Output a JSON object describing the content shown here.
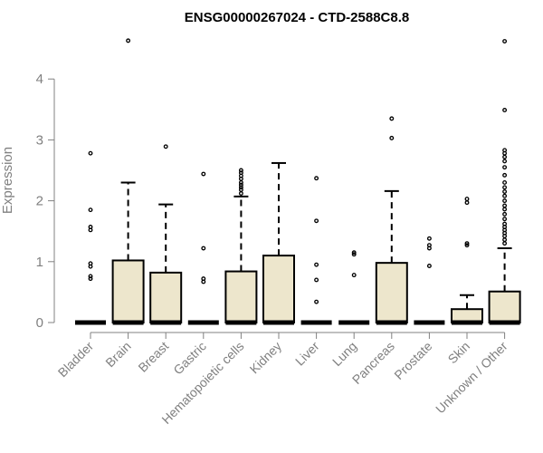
{
  "chart_data": {
    "type": "box",
    "title": "ENSG00000267024 - CTD-2588C8.8",
    "ylabel": "Expression",
    "xlabel": "",
    "ylim": [
      0,
      4.8
    ],
    "yticks": [
      0,
      1,
      2,
      3,
      4
    ],
    "grid": false,
    "box_color": "#ede6cc",
    "categories": [
      "Bladder",
      "Brain",
      "Breast",
      "Gastric",
      "Hematopoietic cells",
      "Kidney",
      "Liver",
      "Lung",
      "Pancreas",
      "Prostate",
      "Skin",
      "Unknown / Other"
    ],
    "boxes": [
      {
        "q1": 0,
        "median": 0,
        "q3": 0,
        "whisker_low": 0,
        "whisker_high": 0,
        "outliers": [
          0.72,
          0.76,
          0.92,
          0.97,
          1.52,
          1.57,
          1.85,
          2.78
        ]
      },
      {
        "q1": 0,
        "median": 0,
        "q3": 1.02,
        "whisker_low": 0,
        "whisker_high": 2.3,
        "outliers": [
          4.63
        ]
      },
      {
        "q1": 0,
        "median": 0,
        "q3": 0.82,
        "whisker_low": 0,
        "whisker_high": 1.94,
        "outliers": [
          2.89
        ]
      },
      {
        "q1": 0,
        "median": 0,
        "q3": 0,
        "whisker_low": 0,
        "whisker_high": 0,
        "outliers": [
          0.67,
          0.72,
          1.22,
          2.44
        ]
      },
      {
        "q1": 0,
        "median": 0,
        "q3": 0.84,
        "whisker_low": 0,
        "whisker_high": 2.07,
        "outliers": [
          2.12,
          2.18,
          2.22,
          2.26,
          2.3,
          2.36,
          2.41,
          2.46,
          2.5
        ]
      },
      {
        "q1": 0,
        "median": 0,
        "q3": 1.1,
        "whisker_low": 0,
        "whisker_high": 2.62,
        "outliers": []
      },
      {
        "q1": 0,
        "median": 0,
        "q3": 0,
        "whisker_low": 0,
        "whisker_high": 0,
        "outliers": [
          0.34,
          0.7,
          0.95,
          1.67,
          2.37
        ]
      },
      {
        "q1": 0,
        "median": 0,
        "q3": 0,
        "whisker_low": 0,
        "whisker_high": 0,
        "outliers": [
          0.78,
          1.12,
          1.15
        ]
      },
      {
        "q1": 0,
        "median": 0,
        "q3": 0.98,
        "whisker_low": 0,
        "whisker_high": 2.16,
        "outliers": [
          3.03,
          3.35
        ]
      },
      {
        "q1": 0,
        "median": 0,
        "q3": 0,
        "whisker_low": 0,
        "whisker_high": 0,
        "outliers": [
          0.93,
          1.22,
          1.27,
          1.38
        ]
      },
      {
        "q1": 0,
        "median": 0,
        "q3": 0.22,
        "whisker_low": 0,
        "whisker_high": 0.45,
        "outliers": [
          1.27,
          1.3,
          1.97,
          2.03
        ]
      },
      {
        "q1": 0,
        "median": 0,
        "q3": 0.51,
        "whisker_low": 0,
        "whisker_high": 1.22,
        "outliers": [
          1.3,
          1.36,
          1.42,
          1.47,
          1.52,
          1.57,
          1.62,
          1.7,
          1.78,
          1.86,
          1.92,
          2.0,
          2.08,
          2.15,
          2.22,
          2.3,
          2.42,
          2.55,
          2.65,
          2.72,
          2.78,
          2.83,
          3.49,
          4.62
        ]
      }
    ]
  }
}
